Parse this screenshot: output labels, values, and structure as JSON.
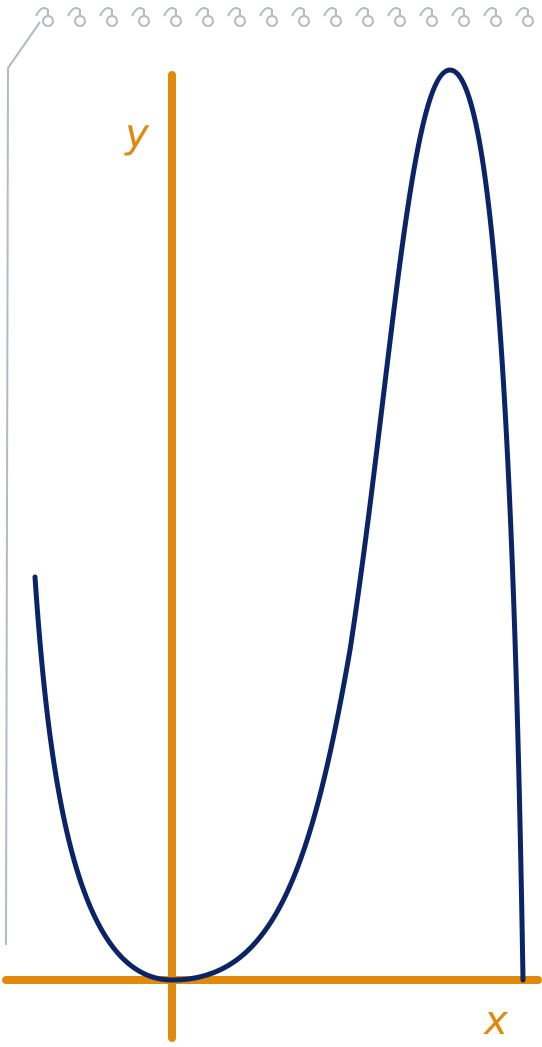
{
  "axes": {
    "y_label": "y",
    "x_label": "x"
  }
}
